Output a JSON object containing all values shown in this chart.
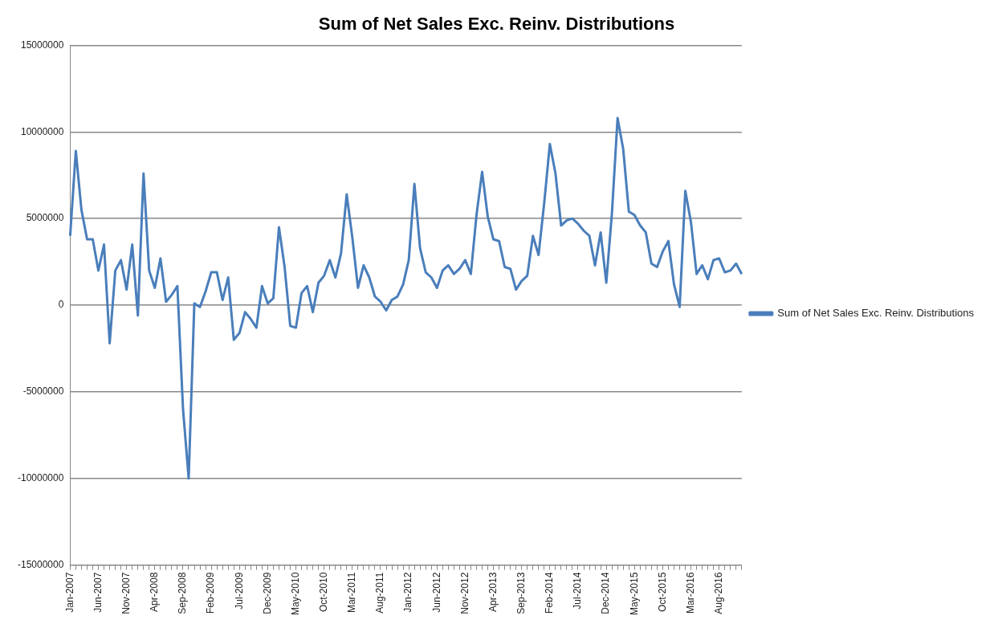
{
  "chart_data": {
    "type": "line",
    "title": "Sum of Net Sales Exc. Reinv. Distributions",
    "categories": [
      "Jan-2007",
      null,
      null,
      null,
      null,
      "Jun-2007",
      null,
      null,
      null,
      null,
      "Nov-2007",
      null,
      null,
      null,
      null,
      "Apr-2008",
      null,
      null,
      null,
      null,
      "Sep-2008",
      null,
      null,
      null,
      null,
      "Feb-2009",
      null,
      null,
      null,
      null,
      "Jul-2009",
      null,
      null,
      null,
      null,
      "Dec-2009",
      null,
      null,
      null,
      null,
      "May-2010",
      null,
      null,
      null,
      null,
      "Oct-2010",
      null,
      null,
      null,
      null,
      "Mar-2011",
      null,
      null,
      null,
      null,
      "Aug-2011",
      null,
      null,
      null,
      null,
      "Jan-2012",
      null,
      null,
      null,
      null,
      "Jun-2012",
      null,
      null,
      null,
      null,
      "Nov-2012",
      null,
      null,
      null,
      null,
      "Apr-2013",
      null,
      null,
      null,
      null,
      "Sep-2013",
      null,
      null,
      null,
      null,
      "Feb-2014",
      null,
      null,
      null,
      null,
      "Jul-2014",
      null,
      null,
      null,
      null,
      "Dec-2014",
      null,
      null,
      null,
      null,
      "May-2015",
      null,
      null,
      null,
      null,
      "Oct-2015",
      null,
      null,
      null,
      null,
      "Mar-2016",
      null,
      null,
      null,
      null,
      "Aug-2016",
      null,
      null,
      null,
      null
    ],
    "series": [
      {
        "name": "Sum of Net Sales Exc. Reinv. Distributions",
        "color": "#4a7ebb",
        "values": [
          4000000,
          8900000,
          5500000,
          3800000,
          3800000,
          2000000,
          3500000,
          -2200000,
          2000000,
          2600000,
          900000,
          3500000,
          -600000,
          7600000,
          2000000,
          1000000,
          2700000,
          200000,
          600000,
          1100000,
          -6000000,
          -10000000,
          100000,
          -100000,
          800000,
          1900000,
          1900000,
          300000,
          1600000,
          -2000000,
          -1600000,
          -400000,
          -800000,
          -1300000,
          1100000,
          100000,
          400000,
          4500000,
          2200000,
          -1200000,
          -1300000,
          700000,
          1100000,
          -400000,
          1300000,
          1700000,
          2600000,
          1600000,
          3000000,
          6400000,
          3900000,
          1000000,
          2300000,
          1600000,
          500000,
          200000,
          -300000,
          300000,
          500000,
          1200000,
          2600000,
          7000000,
          3300000,
          1900000,
          1600000,
          1000000,
          2000000,
          2300000,
          1800000,
          2100000,
          2600000,
          1800000,
          5200000,
          7700000,
          5100000,
          3800000,
          3700000,
          2200000,
          2100000,
          900000,
          1400000,
          1700000,
          4000000,
          2900000,
          5900000,
          9300000,
          7600000,
          4600000,
          4900000,
          5000000,
          4700000,
          4300000,
          4000000,
          2300000,
          4200000,
          1300000,
          5300000,
          10800000,
          9000000,
          5400000,
          5200000,
          4600000,
          4200000,
          2400000,
          2200000,
          3100000,
          3700000,
          1200000,
          -100000,
          6600000,
          4800000,
          1800000,
          2300000,
          1500000,
          2600000,
          2700000,
          1900000,
          2000000,
          2400000,
          1800000
        ]
      }
    ],
    "ylim": [
      -15000000,
      15000000
    ],
    "yticks": [
      -15000000,
      -10000000,
      -5000000,
      0,
      5000000,
      10000000,
      15000000
    ],
    "grid": "y",
    "legend": "right",
    "marker": "none",
    "line_style": "solid"
  }
}
